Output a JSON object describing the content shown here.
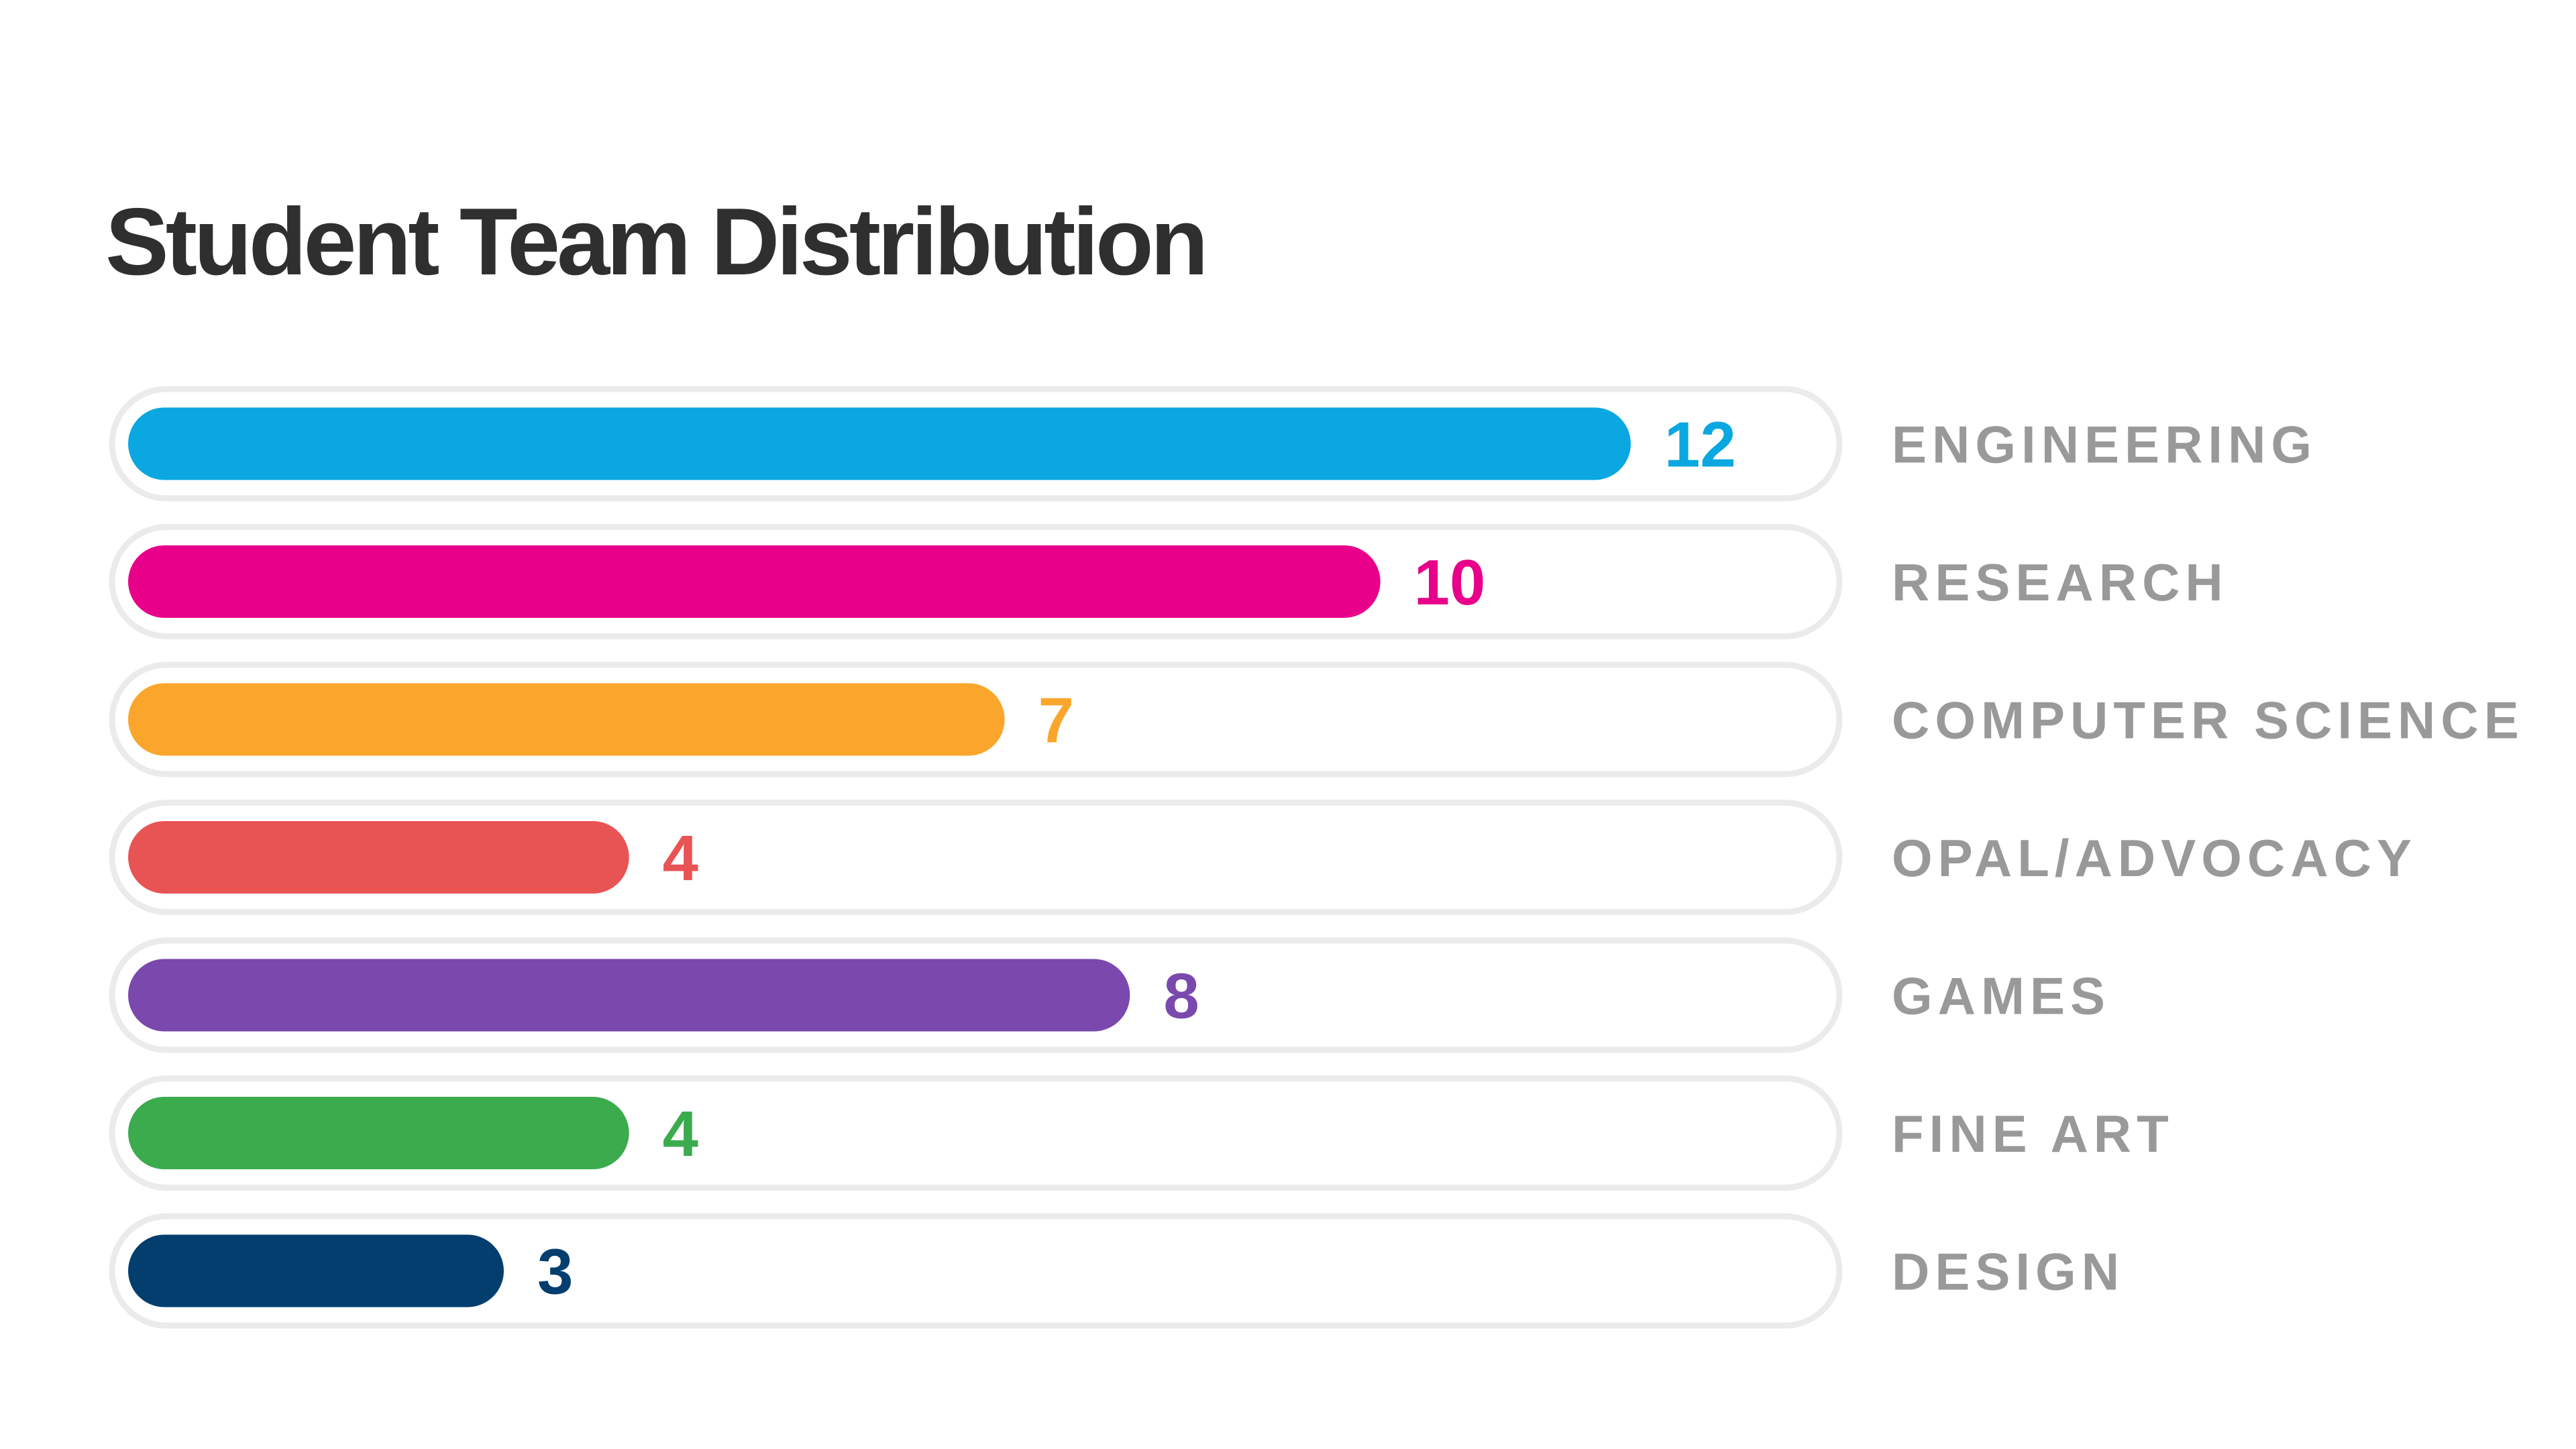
{
  "chart_data": {
    "type": "bar",
    "orientation": "horizontal",
    "title": "Student Team Distribution",
    "categories": [
      "ENGINEERING",
      "RESEARCH",
      "COMPUTER SCIENCE",
      "OPAL/ADVOCACY",
      "GAMES",
      "FINE ART",
      "DESIGN"
    ],
    "values": [
      12,
      10,
      7,
      4,
      8,
      4,
      3
    ],
    "colors": [
      "#0aa7e1",
      "#e8008a",
      "#faa62c",
      "#e85354",
      "#7b48ad",
      "#3bab4e",
      "#033e6f"
    ],
    "xlim": [
      0,
      12
    ],
    "grid": false,
    "legend": "none",
    "value_labels": true,
    "category_label_color": "#999999",
    "track_border_color": "#ebebeb",
    "title_color": "#2f2f2f"
  }
}
